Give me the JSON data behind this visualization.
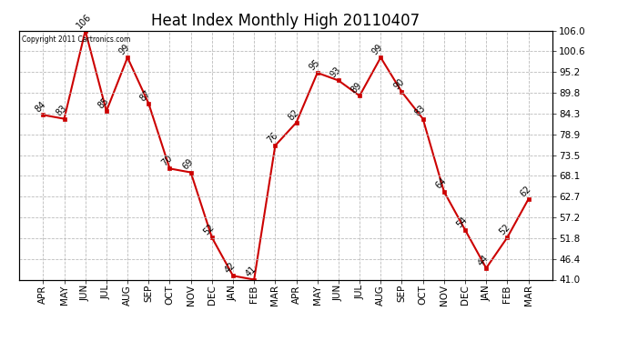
{
  "title": "Heat Index Monthly High 20110407",
  "copyright": "Copyright 2011 Cartronics.com",
  "months": [
    "APR",
    "MAY",
    "JUN",
    "JUL",
    "AUG",
    "SEP",
    "OCT",
    "NOV",
    "DEC",
    "JAN",
    "FEB",
    "MAR",
    "APR",
    "MAY",
    "JUN",
    "JUL",
    "AUG",
    "SEP",
    "OCT",
    "NOV",
    "DEC",
    "JAN",
    "FEB",
    "MAR"
  ],
  "values": [
    84,
    83,
    106,
    85,
    99,
    87,
    70,
    69,
    52,
    42,
    41,
    76,
    82,
    95,
    93,
    89,
    99,
    90,
    83,
    64,
    54,
    44,
    52,
    62
  ],
  "line_color": "#cc0000",
  "marker_color": "#cc0000",
  "background_color": "#ffffff",
  "grid_color": "#bbbbbb",
  "ylim": [
    41.0,
    106.0
  ],
  "yticks": [
    41.0,
    46.4,
    51.8,
    57.2,
    62.7,
    68.1,
    73.5,
    78.9,
    84.3,
    89.8,
    95.2,
    100.6,
    106.0
  ],
  "title_fontsize": 12,
  "label_fontsize": 7,
  "tick_fontsize": 7.5,
  "marker_size": 4,
  "line_width": 1.5
}
